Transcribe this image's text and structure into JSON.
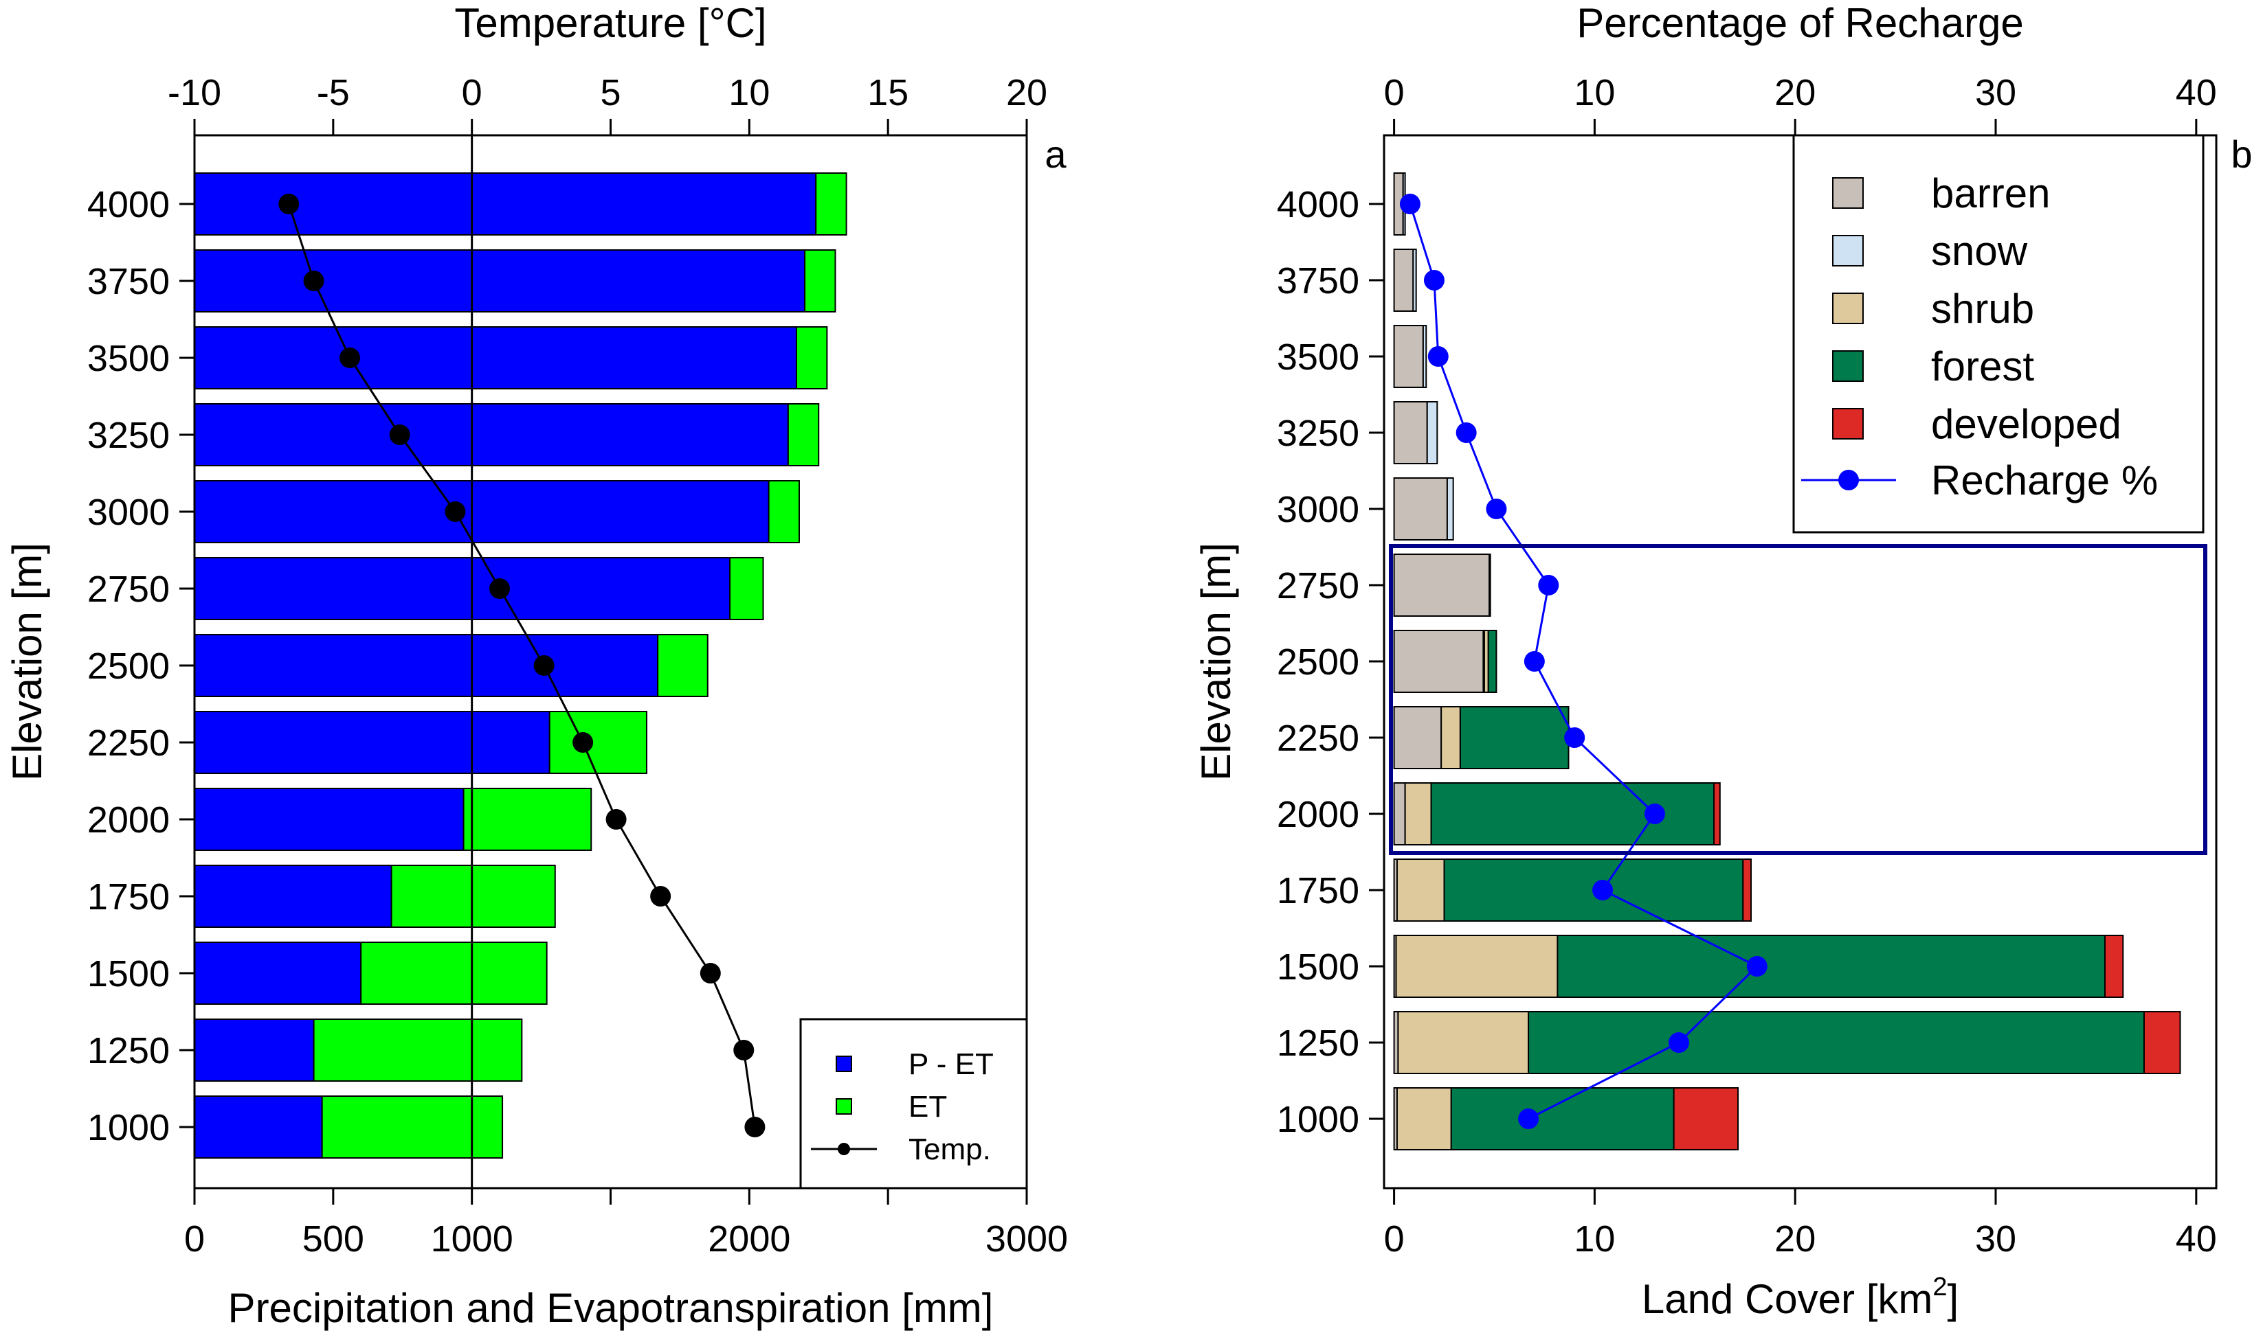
{
  "chart_data": [
    {
      "type": "bar",
      "orientation": "horizontal",
      "stacked": true,
      "panel_label": "a",
      "categories": [
        4000,
        3750,
        3500,
        3250,
        3000,
        2750,
        2500,
        2250,
        2000,
        1750,
        1500,
        1250,
        1000
      ],
      "ylabel": "Elevation [m]",
      "xlabel": "Precipitation and Evapotranspiration [mm]",
      "xlim": [
        0,
        3000
      ],
      "xticks": [
        0,
        500,
        1000,
        2000,
        3000
      ],
      "xlabel_top": "Temperature [°C]",
      "xlim_top": [
        -10,
        20
      ],
      "xticks_top": [
        -10,
        -5,
        0,
        5,
        10,
        15,
        20
      ],
      "series": [
        {
          "name": "P - ET",
          "color": "#0000ff",
          "values": [
            2240,
            2200,
            2170,
            2140,
            2070,
            1930,
            1670,
            1280,
            970,
            710,
            600,
            430,
            460
          ]
        },
        {
          "name": "ET",
          "color": "#00ff00",
          "values": [
            110,
            110,
            110,
            110,
            110,
            120,
            180,
            350,
            460,
            590,
            670,
            750,
            650
          ]
        }
      ],
      "line_series": {
        "name": "Temp.",
        "color": "#000000",
        "values": [
          -6.6,
          -5.7,
          -4.4,
          -2.6,
          -0.6,
          1.0,
          2.6,
          4.0,
          5.2,
          6.8,
          8.6,
          9.8,
          10.2
        ]
      },
      "legend": {
        "position": "bottom-right",
        "entries": [
          "P - ET",
          "ET",
          "Temp."
        ]
      },
      "zero_line_top": 0
    },
    {
      "type": "bar",
      "orientation": "horizontal",
      "stacked": true,
      "panel_label": "b",
      "categories": [
        4000,
        3750,
        3500,
        3250,
        3000,
        2750,
        2500,
        2250,
        2000,
        1750,
        1500,
        1250,
        1000
      ],
      "ylabel": "Elevation [m]",
      "xlabel": "Land Cover [km",
      "xlabel_sup": "2",
      "xlabel_end": "]",
      "xlim": [
        -0.5,
        41
      ],
      "xticks": [
        0,
        10,
        20,
        30,
        40
      ],
      "xlabel_top": "Percentage of Recharge",
      "xlim_top": [
        -0.5,
        41
      ],
      "xticks_top": [
        0,
        10,
        20,
        30,
        40
      ],
      "series": [
        {
          "name": "barren",
          "color": "#c7bfb8",
          "values": [
            0.45,
            0.95,
            1.45,
            1.65,
            2.65,
            4.75,
            4.45,
            2.35,
            0.55,
            0.15,
            0.1,
            0.2,
            0.15
          ]
        },
        {
          "name": "snow",
          "color": "#cfe2f3",
          "values": [
            0.1,
            0.15,
            0.15,
            0.5,
            0.3,
            0.05,
            0.05,
            0.0,
            0.0,
            0.0,
            0.0,
            0.0,
            0.0
          ]
        },
        {
          "name": "shrub",
          "color": "#dec99c",
          "values": [
            0.0,
            0.0,
            0.0,
            0.0,
            0.0,
            0.0,
            0.2,
            0.95,
            1.3,
            2.35,
            8.05,
            6.5,
            2.7
          ]
        },
        {
          "name": "forest",
          "color": "#007c4c",
          "values": [
            0.0,
            0.0,
            0.0,
            0.0,
            0.0,
            0.0,
            0.4,
            5.4,
            14.1,
            14.9,
            27.3,
            30.7,
            11.1
          ]
        },
        {
          "name": "developed",
          "color": "#de2a26",
          "values": [
            0.0,
            0.0,
            0.0,
            0.0,
            0.0,
            0.0,
            0.0,
            0.0,
            0.3,
            0.4,
            0.9,
            1.8,
            3.2
          ]
        }
      ],
      "line_series": {
        "name": "Recharge %",
        "color": "#0000ff",
        "values": [
          0.8,
          2.0,
          2.2,
          3.6,
          5.1,
          7.7,
          7.0,
          9.0,
          13.0,
          10.4,
          18.1,
          14.2,
          6.7
        ]
      },
      "highlight_box": {
        "from_category": 2750,
        "to_category": 2000,
        "color": "#00008b"
      },
      "legend": {
        "position": "top-right",
        "entries": [
          "barren",
          "snow",
          "shrub",
          "forest",
          "developed",
          "Recharge %"
        ]
      }
    }
  ]
}
